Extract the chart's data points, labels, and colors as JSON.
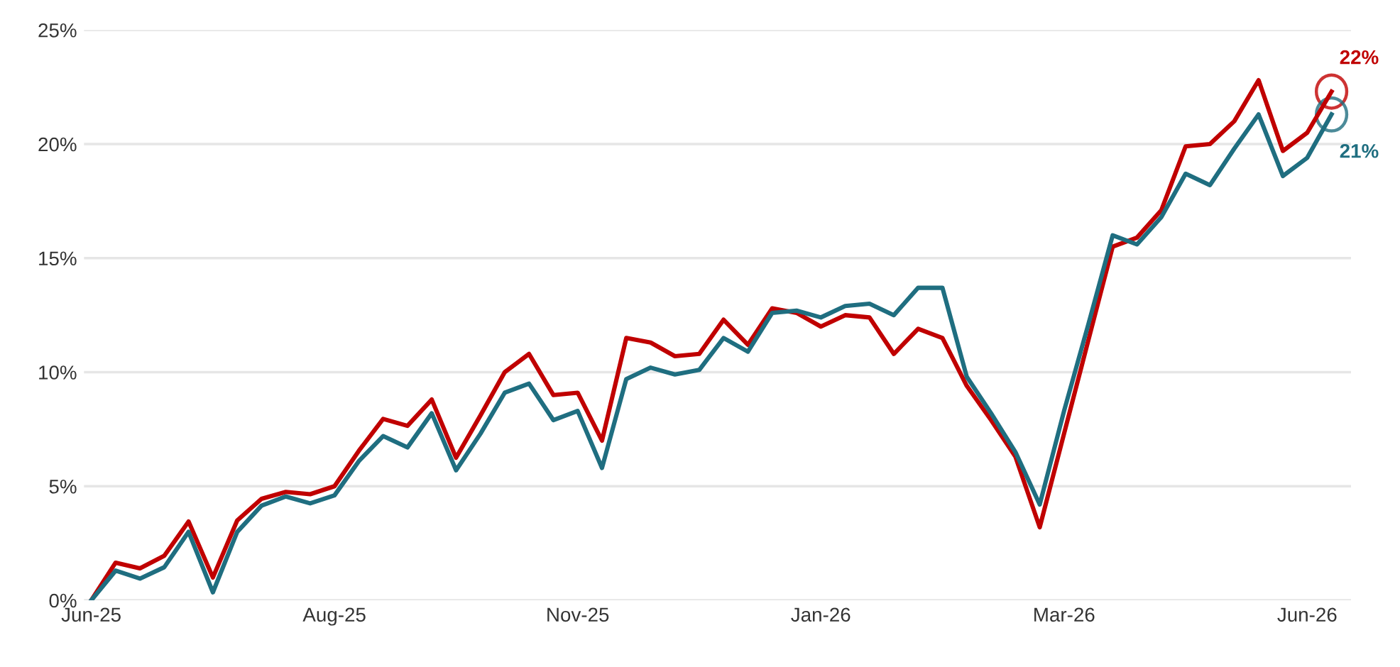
{
  "chart_data": {
    "type": "line",
    "categories": [
      "Jun-25",
      null,
      null,
      null,
      null,
      null,
      null,
      null,
      null,
      null,
      "Aug-25",
      null,
      null,
      null,
      null,
      null,
      null,
      null,
      null,
      null,
      "Nov-25",
      null,
      null,
      null,
      null,
      null,
      null,
      null,
      null,
      null,
      "Jan-26",
      null,
      null,
      null,
      null,
      null,
      null,
      null,
      null,
      null,
      "Mar-26",
      null,
      null,
      null,
      null,
      null,
      null,
      null,
      null,
      null,
      "Jun-26",
      null
    ],
    "series": [
      {
        "color": "#c00000",
        "values": [
          0,
          1.65,
          1.4,
          1.95,
          3.45,
          1.0,
          3.5,
          4.45,
          4.75,
          4.65,
          5.0,
          6.55,
          7.95,
          7.65,
          8.8,
          6.25,
          8.1,
          10.0,
          10.8,
          9.0,
          9.1,
          7.0,
          11.5,
          11.3,
          10.7,
          10.8,
          12.3,
          11.2,
          12.8,
          12.6,
          12.0,
          12.5,
          12.4,
          10.8,
          11.9,
          11.5,
          9.4,
          7.9,
          6.3,
          3.2,
          7.3,
          11.4,
          15.5,
          15.9,
          17.1,
          19.9,
          20.0,
          21.0,
          22.8,
          19.7,
          20.5,
          22.3
        ]
      },
      {
        "color": "#1f6e80",
        "values": [
          0,
          1.3,
          0.95,
          1.45,
          3.0,
          0.35,
          3.0,
          4.15,
          4.55,
          4.25,
          4.6,
          6.1,
          7.2,
          6.7,
          8.2,
          5.7,
          7.3,
          9.1,
          9.5,
          7.9,
          8.3,
          5.8,
          9.7,
          10.2,
          9.9,
          10.1,
          11.5,
          10.9,
          12.6,
          12.7,
          12.4,
          12.9,
          13.0,
          12.5,
          13.7,
          13.7,
          9.8,
          8.2,
          6.5,
          4.2,
          8.3,
          12.1,
          16.0,
          15.6,
          16.8,
          18.7,
          18.2,
          19.8,
          21.3,
          18.6,
          19.4,
          21.3
        ]
      }
    ],
    "annotations": [
      "22%",
      "21%"
    ],
    "ylim": [
      0,
      25
    ],
    "yticks": [
      {
        "value": 0,
        "label": "0%"
      },
      {
        "value": 5,
        "label": "5%"
      },
      {
        "value": 10,
        "label": "10%"
      },
      {
        "value": 15,
        "label": "15%"
      },
      {
        "value": 20,
        "label": "20%"
      },
      {
        "value": 25,
        "label": "25%"
      }
    ],
    "grid": "y",
    "legend": false,
    "marker": "none",
    "line_style": "solid"
  }
}
